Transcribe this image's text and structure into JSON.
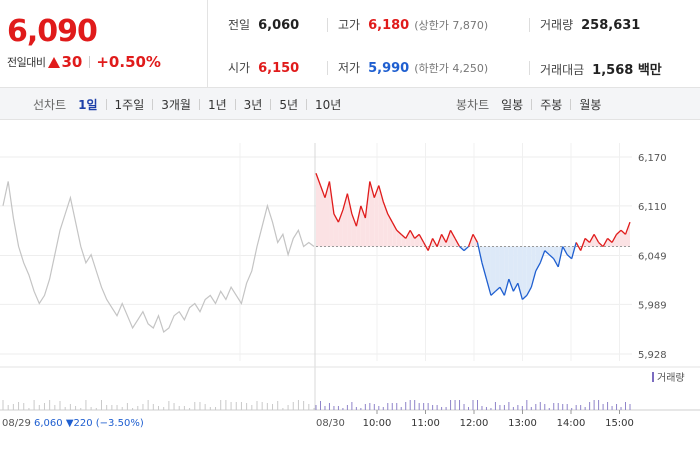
{
  "quote": {
    "price": "6,090",
    "change_label": "전일대비",
    "change_value": "30",
    "change_pct": "+0.50%"
  },
  "stats": {
    "prev_close": {
      "label": "전일",
      "value": "6,060"
    },
    "high": {
      "label": "고가",
      "value": "6,180",
      "sub": "(상한가 7,870)"
    },
    "volume": {
      "label": "거래량",
      "value": "258,631"
    },
    "open": {
      "label": "시가",
      "value": "6,150"
    },
    "low": {
      "label": "저가",
      "value": "5,990",
      "sub": "(하한가 4,250)"
    },
    "amount": {
      "label": "거래대금",
      "value": "1,568 백만"
    }
  },
  "line_chart_tabs": {
    "label": "선차트",
    "items": [
      "1일",
      "1주일",
      "3개월",
      "1년",
      "3년",
      "5년",
      "10년"
    ],
    "active": "1일"
  },
  "candle_chart_tabs": {
    "label": "봉차트",
    "items": [
      "일봉",
      "주봉",
      "월봉"
    ]
  },
  "colors": {
    "up": "#e01b1b",
    "down": "#1f5fd0",
    "prev_day_line": "#c4c4c4",
    "up_fill": "#fbe2e4",
    "down_fill": "#dde9f8"
  },
  "chart_data": {
    "type": "line",
    "title": "",
    "y_ticks": [
      "6,170",
      "6,110",
      "6,049",
      "5,989",
      "5,928"
    ],
    "ylim": [
      5928,
      6170
    ],
    "reference_price": 6060,
    "x_ticks": [
      "10:00",
      "11:00",
      "12:00",
      "13:00",
      "14:00",
      "15:00"
    ],
    "session_start_label": "08/30",
    "prev_day_footer": {
      "date": "08/29",
      "price": "6,060",
      "change": "▼220",
      "pct": "(−3.50%)"
    },
    "volume_legend": "거래량",
    "series": [
      {
        "session": "08/29",
        "values": [
          6110,
          6140,
          6095,
          6060,
          6040,
          6025,
          6005,
          5990,
          6000,
          6020,
          6050,
          6080,
          6100,
          6120,
          6090,
          6060,
          6040,
          6050,
          6030,
          6010,
          5995,
          5985,
          5975,
          5990,
          5975,
          5960,
          5970,
          5980,
          5965,
          5960,
          5975,
          5955,
          5960,
          5975,
          5980,
          5970,
          5985,
          5990,
          5980,
          5995,
          6000,
          5990,
          6005,
          5995,
          6010,
          6000,
          5990,
          6015,
          6030,
          6060,
          6085,
          6110,
          6090,
          6065,
          6075,
          6050,
          6070,
          6080,
          6060,
          6065,
          6060
        ]
      },
      {
        "session": "08/30",
        "values": [
          6150,
          6135,
          6120,
          6140,
          6100,
          6090,
          6105,
          6125,
          6100,
          6085,
          6110,
          6095,
          6140,
          6120,
          6135,
          6115,
          6100,
          6090,
          6080,
          6075,
          6070,
          6080,
          6070,
          6075,
          6065,
          6055,
          6070,
          6060,
          6075,
          6065,
          6080,
          6070,
          6060,
          6055,
          6060,
          6075,
          6065,
          6040,
          6020,
          6000,
          6005,
          6010,
          6000,
          6020,
          6005,
          6015,
          5995,
          6000,
          6010,
          6030,
          6040,
          6055,
          6050,
          6045,
          6035,
          6060,
          6050,
          6045,
          6065,
          6055,
          6070,
          6065,
          6075,
          6065,
          6060,
          6070,
          6065,
          6075,
          6080,
          6075,
          6090
        ]
      }
    ]
  }
}
